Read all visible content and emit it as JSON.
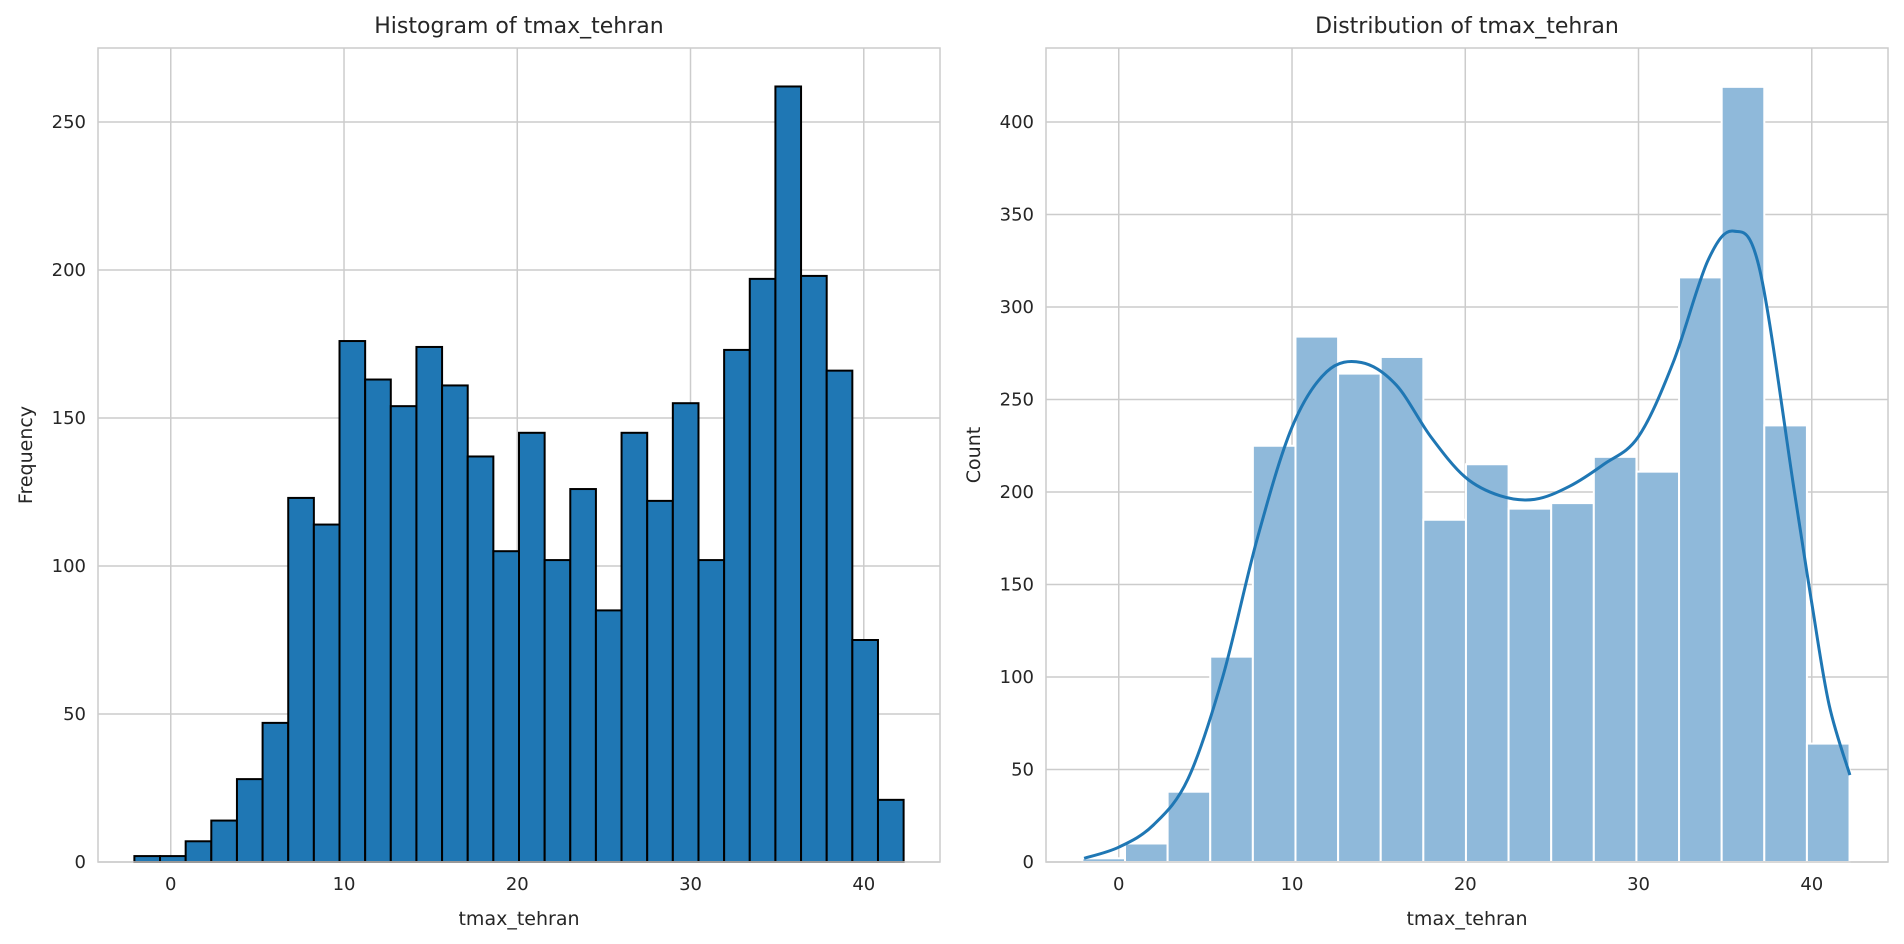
{
  "chart_data": [
    {
      "type": "bar",
      "title": "Histogram of tmax_tehran",
      "xlabel": "tmax_tehran",
      "ylabel": "Frequency",
      "xlim": [
        -4.2,
        44.4
      ],
      "ylim": [
        0,
        275
      ],
      "xticks": [
        0,
        10,
        20,
        30,
        40
      ],
      "yticks": [
        0,
        50,
        100,
        150,
        200,
        250
      ],
      "grid": true,
      "bar_color": "#1f77b4",
      "edge_color": "#000000",
      "bin_edges": [
        -2.1,
        -0.62,
        0.86,
        2.34,
        3.82,
        5.3,
        6.78,
        8.26,
        9.74,
        11.22,
        12.7,
        14.18,
        15.66,
        17.14,
        18.62,
        20.1,
        21.58,
        23.06,
        24.54,
        26.02,
        27.5,
        28.98,
        30.46,
        31.94,
        33.42,
        34.9,
        36.38,
        37.86,
        39.34,
        40.82,
        42.3
      ],
      "values": [
        2,
        2,
        7,
        14,
        28,
        47,
        123,
        114,
        176,
        163,
        154,
        174,
        161,
        137,
        105,
        145,
        102,
        126,
        85,
        145,
        122,
        155,
        102,
        173,
        197,
        262,
        198,
        166,
        75,
        21
      ]
    },
    {
      "type": "bar",
      "title": "Distribution of tmax_tehran",
      "xlabel": "tmax_tehran",
      "ylabel": "Count",
      "xlim": [
        -4.2,
        44.4
      ],
      "ylim": [
        0,
        440
      ],
      "xticks": [
        0,
        10,
        20,
        30,
        40
      ],
      "yticks": [
        0,
        50,
        100,
        150,
        200,
        250,
        300,
        350,
        400
      ],
      "grid": true,
      "bar_color": "#8fb9da",
      "edge_color": "#ffffff",
      "kde_color": "#1f77b4",
      "bin_edges": [
        -2.1,
        0.36,
        2.82,
        5.28,
        7.74,
        10.2,
        12.66,
        15.12,
        17.58,
        20.04,
        22.5,
        24.96,
        27.42,
        29.88,
        32.34,
        34.8,
        37.26,
        39.72,
        42.18
      ],
      "values": [
        2,
        10,
        38,
        111,
        225,
        284,
        264,
        273,
        185,
        215,
        191,
        194,
        219,
        211,
        316,
        419,
        236,
        64
      ],
      "kde": {
        "x": [
          -2,
          0,
          2,
          4,
          6,
          8,
          10,
          12,
          14,
          16,
          18,
          20,
          22,
          24,
          26,
          28,
          30,
          32,
          34,
          35.5,
          37,
          39,
          40,
          41,
          42.2
        ],
        "y": [
          2,
          8,
          20,
          45,
          100,
          175,
          235,
          265,
          270,
          258,
          230,
          208,
          198,
          196,
          203,
          215,
          230,
          270,
          325,
          341,
          320,
          200,
          140,
          85,
          47
        ]
      }
    }
  ]
}
